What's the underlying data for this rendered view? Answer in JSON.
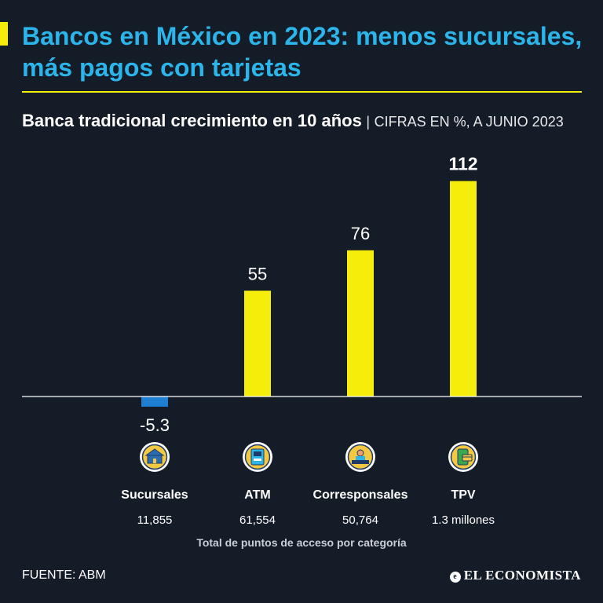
{
  "header": {
    "title": "Bancos en México en 2023: menos sucursales, más pagos con tarjetas",
    "subtitle_bold": "Banca tradicional crecimiento en 10 años",
    "subtitle_sep": "|",
    "subtitle_light": "CIFRAS EN %, A JUNIO 2023"
  },
  "colors": {
    "accent": "#f5ee0a",
    "title": "#2bb5ea",
    "negative": "#1f7fd1",
    "background": "#141c28"
  },
  "chart_data": {
    "type": "bar",
    "title": "Banca tradicional crecimiento en 10 años",
    "ylabel": "Cifras en %",
    "ylim": [
      -10,
      120
    ],
    "categories": [
      "Sucursales",
      "ATM",
      "Corresponsales",
      "TPV"
    ],
    "values": [
      -5.3,
      55,
      76,
      112
    ],
    "value_labels": [
      "-5.3",
      "55",
      "76",
      "112"
    ],
    "access_points": [
      "11,855",
      "61,554",
      "50,764",
      "1.3 millones"
    ],
    "icons": [
      "bank-building-icon",
      "atm-machine-icon",
      "teller-desk-icon",
      "card-payment-icon"
    ],
    "grid": false
  },
  "footnote": "Total de puntos de acceso por categoría",
  "source": "FUENTE: ABM",
  "brand": "EL ECONOMISTA"
}
